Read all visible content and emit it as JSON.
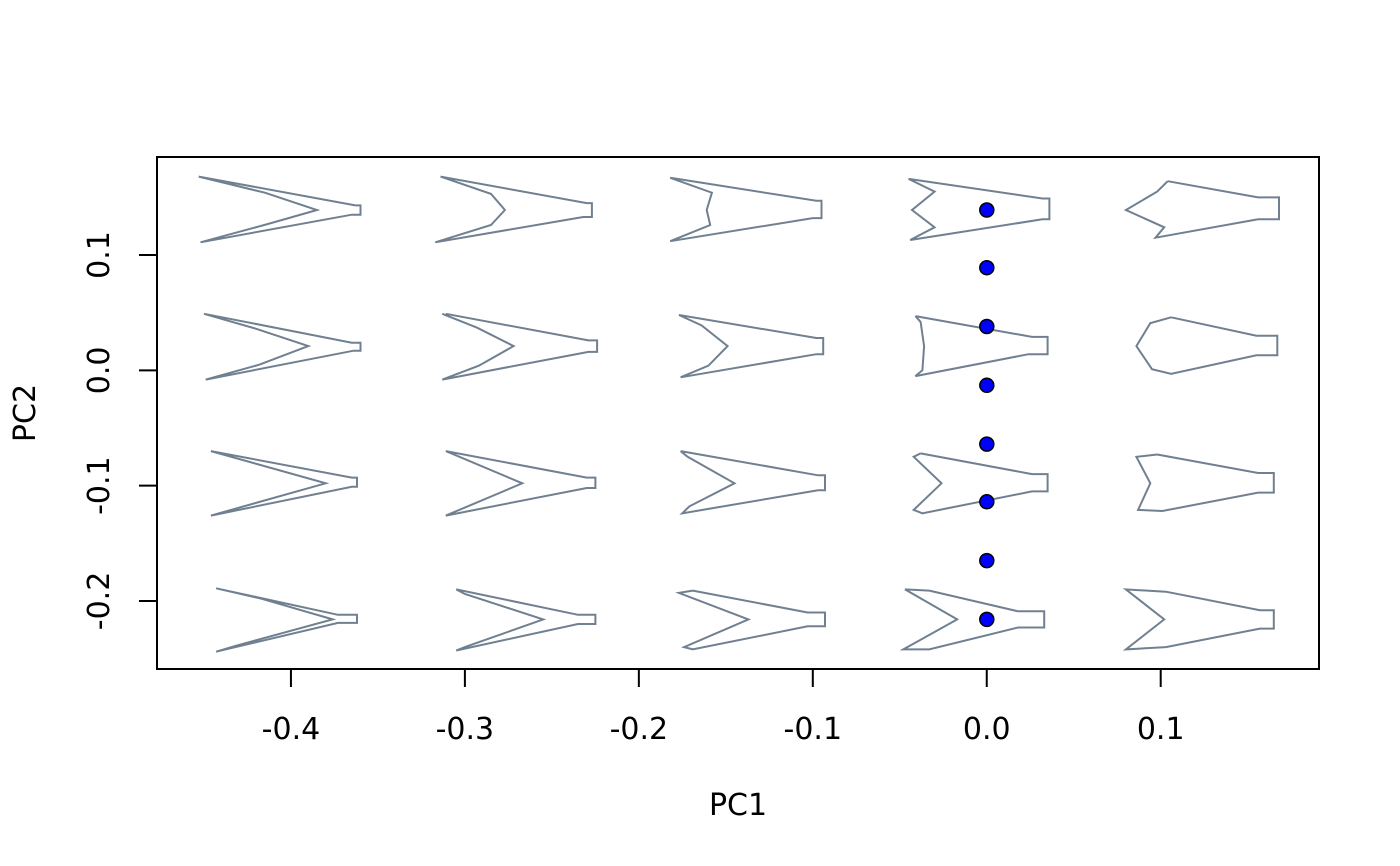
{
  "chart_data": {
    "type": "scatter",
    "title": "",
    "xlabel": "PC1",
    "ylabel": "PC2",
    "xlim": [
      -0.477,
      0.191
    ],
    "ylim": [
      -0.259,
      0.185
    ],
    "x_ticks": [
      {
        "value": -0.4,
        "label": "-0.4"
      },
      {
        "value": -0.3,
        "label": "-0.3"
      },
      {
        "value": -0.2,
        "label": "-0.2"
      },
      {
        "value": -0.1,
        "label": "-0.1"
      },
      {
        "value": 0.0,
        "label": "0.0"
      },
      {
        "value": 0.1,
        "label": "0.1"
      }
    ],
    "y_ticks": [
      {
        "value": -0.2,
        "label": "-0.2"
      },
      {
        "value": -0.1,
        "label": "-0.1"
      },
      {
        "value": 0.0,
        "label": "0.0"
      },
      {
        "value": 0.1,
        "label": "0.1"
      }
    ],
    "grid": false,
    "legend": "none",
    "series": [
      {
        "marker": "filled-circle",
        "color": "#0000ff",
        "points": [
          {
            "x": 0.0,
            "y": 0.139
          },
          {
            "x": 0.0,
            "y": 0.089
          },
          {
            "x": 0.0,
            "y": 0.038
          },
          {
            "x": 0.0,
            "y": -0.013
          },
          {
            "x": 0.0,
            "y": -0.064
          },
          {
            "x": 0.0,
            "y": -0.114
          },
          {
            "x": 0.0,
            "y": -0.165
          },
          {
            "x": 0.0,
            "y": -0.216
          }
        ]
      }
    ],
    "shape_grid": {
      "color": "#708090",
      "columns_x": [
        -0.364,
        -0.231,
        -0.097,
        0.035,
        0.168
      ],
      "rows_y": [
        0.139,
        0.019,
        -0.098,
        -0.216
      ],
      "shapes": [
        [
          [
            [
              -0.453,
              0.168
            ],
            [
              -0.363,
              0.143
            ],
            [
              -0.36,
              0.143
            ],
            [
              -0.36,
              0.135
            ],
            [
              -0.365,
              0.135
            ],
            [
              -0.452,
              0.111
            ],
            [
              -0.413,
              0.127
            ],
            [
              -0.385,
              0.139
            ],
            [
              -0.415,
              0.154
            ],
            [
              -0.453,
              0.168
            ]
          ],
          [
            [
              -0.314,
              0.168
            ],
            [
              -0.23,
              0.145
            ],
            [
              -0.227,
              0.145
            ],
            [
              -0.227,
              0.133
            ],
            [
              -0.232,
              0.133
            ],
            [
              -0.317,
              0.111
            ],
            [
              -0.285,
              0.126
            ],
            [
              -0.277,
              0.139
            ],
            [
              -0.285,
              0.153
            ],
            [
              -0.314,
              0.168
            ]
          ],
          [
            [
              -0.182,
              0.167
            ],
            [
              -0.098,
              0.147
            ],
            [
              -0.095,
              0.147
            ],
            [
              -0.095,
              0.132
            ],
            [
              -0.1,
              0.132
            ],
            [
              -0.182,
              0.112
            ],
            [
              -0.159,
              0.126
            ],
            [
              -0.161,
              0.139
            ],
            [
              -0.158,
              0.154
            ],
            [
              -0.182,
              0.167
            ]
          ],
          [
            [
              -0.045,
              0.166
            ],
            [
              0.032,
              0.149
            ],
            [
              0.036,
              0.149
            ],
            [
              0.036,
              0.131
            ],
            [
              0.032,
              0.131
            ],
            [
              -0.044,
              0.113
            ],
            [
              -0.03,
              0.124
            ],
            [
              -0.043,
              0.139
            ],
            [
              -0.03,
              0.155
            ],
            [
              -0.045,
              0.166
            ]
          ],
          [
            [
              0.104,
              0.164
            ],
            [
              0.156,
              0.15
            ],
            [
              0.168,
              0.15
            ],
            [
              0.168,
              0.131
            ],
            [
              0.156,
              0.131
            ],
            [
              0.097,
              0.115
            ],
            [
              0.102,
              0.124
            ],
            [
              0.08,
              0.139
            ],
            [
              0.098,
              0.155
            ],
            [
              0.104,
              0.164
            ]
          ]
        ],
        [
          [
            [
              -0.45,
              0.049
            ],
            [
              -0.365,
              0.024
            ],
            [
              -0.36,
              0.024
            ],
            [
              -0.36,
              0.017
            ],
            [
              -0.364,
              0.017
            ],
            [
              -0.449,
              -0.008
            ],
            [
              -0.418,
              0.005
            ],
            [
              -0.39,
              0.021
            ],
            [
              -0.42,
              0.036
            ],
            [
              -0.45,
              0.049
            ]
          ],
          [
            [
              -0.311,
              0.049
            ],
            [
              -0.229,
              0.026
            ],
            [
              -0.224,
              0.026
            ],
            [
              -0.224,
              0.016
            ],
            [
              -0.229,
              0.016
            ],
            [
              -0.313,
              -0.008
            ],
            [
              -0.292,
              0.004
            ],
            [
              -0.272,
              0.021
            ],
            [
              -0.293,
              0.037
            ],
            [
              -0.313,
              0.049
            ]
          ],
          [
            [
              -0.177,
              0.048
            ],
            [
              -0.098,
              0.028
            ],
            [
              -0.094,
              0.028
            ],
            [
              -0.094,
              0.014
            ],
            [
              -0.098,
              0.014
            ],
            [
              -0.176,
              -0.006
            ],
            [
              -0.16,
              0.004
            ],
            [
              -0.149,
              0.021
            ],
            [
              -0.164,
              0.039
            ],
            [
              -0.177,
              0.048
            ]
          ],
          [
            [
              -0.041,
              0.047
            ],
            [
              0.026,
              0.029
            ],
            [
              0.035,
              0.029
            ],
            [
              0.035,
              0.014
            ],
            [
              0.024,
              0.014
            ],
            [
              -0.041,
              -0.005
            ],
            [
              -0.037,
              0.0
            ],
            [
              -0.036,
              0.021
            ],
            [
              -0.038,
              0.042
            ],
            [
              -0.041,
              0.047
            ]
          ],
          [
            [
              0.106,
              0.046
            ],
            [
              0.155,
              0.03
            ],
            [
              0.167,
              0.03
            ],
            [
              0.167,
              0.013
            ],
            [
              0.155,
              0.013
            ],
            [
              0.106,
              -0.003
            ],
            [
              0.095,
              0.001
            ],
            [
              0.086,
              0.021
            ],
            [
              0.094,
              0.041
            ],
            [
              0.106,
              0.046
            ]
          ]
        ],
        [
          [
            [
              -0.446,
              -0.07
            ],
            [
              -0.365,
              -0.093
            ],
            [
              -0.362,
              -0.093
            ],
            [
              -0.362,
              -0.101
            ],
            [
              -0.365,
              -0.101
            ],
            [
              -0.446,
              -0.126
            ],
            [
              -0.38,
              -0.098
            ],
            [
              -0.446,
              -0.07
            ]
          ],
          [
            [
              -0.311,
              -0.07
            ],
            [
              -0.23,
              -0.093
            ],
            [
              -0.225,
              -0.093
            ],
            [
              -0.225,
              -0.102
            ],
            [
              -0.23,
              -0.102
            ],
            [
              -0.311,
              -0.126
            ],
            [
              -0.267,
              -0.098
            ],
            [
              -0.311,
              -0.07
            ]
          ],
          [
            [
              -0.176,
              -0.07
            ],
            [
              -0.097,
              -0.091
            ],
            [
              -0.093,
              -0.091
            ],
            [
              -0.093,
              -0.104
            ],
            [
              -0.097,
              -0.104
            ],
            [
              -0.175,
              -0.124
            ],
            [
              -0.171,
              -0.118
            ],
            [
              -0.145,
              -0.098
            ],
            [
              -0.172,
              -0.075
            ],
            [
              -0.176,
              -0.07
            ]
          ],
          [
            [
              -0.038,
              -0.072
            ],
            [
              0.026,
              -0.09
            ],
            [
              0.035,
              -0.09
            ],
            [
              0.035,
              -0.105
            ],
            [
              0.026,
              -0.105
            ],
            [
              -0.037,
              -0.124
            ],
            [
              -0.042,
              -0.121
            ],
            [
              -0.026,
              -0.098
            ],
            [
              -0.042,
              -0.075
            ],
            [
              -0.038,
              -0.072
            ]
          ],
          [
            [
              0.098,
              -0.073
            ],
            [
              0.156,
              -0.089
            ],
            [
              0.165,
              -0.089
            ],
            [
              0.165,
              -0.106
            ],
            [
              0.156,
              -0.106
            ],
            [
              0.101,
              -0.122
            ],
            [
              0.087,
              -0.121
            ],
            [
              0.094,
              -0.098
            ],
            [
              0.086,
              -0.075
            ],
            [
              0.098,
              -0.073
            ]
          ]
        ],
        [
          [
            [
              -0.443,
              -0.189
            ],
            [
              -0.373,
              -0.212
            ],
            [
              -0.362,
              -0.212
            ],
            [
              -0.362,
              -0.219
            ],
            [
              -0.373,
              -0.219
            ],
            [
              -0.443,
              -0.244
            ],
            [
              -0.432,
              -0.239
            ],
            [
              -0.376,
              -0.216
            ],
            [
              -0.417,
              -0.198
            ],
            [
              -0.443,
              -0.189
            ]
          ],
          [
            [
              -0.305,
              -0.19
            ],
            [
              -0.235,
              -0.212
            ],
            [
              -0.225,
              -0.212
            ],
            [
              -0.225,
              -0.22
            ],
            [
              -0.235,
              -0.22
            ],
            [
              -0.305,
              -0.243
            ],
            [
              -0.3,
              -0.24
            ],
            [
              -0.255,
              -0.216
            ],
            [
              -0.3,
              -0.194
            ],
            [
              -0.305,
              -0.19
            ]
          ],
          [
            [
              -0.169,
              -0.191
            ],
            [
              -0.103,
              -0.21
            ],
            [
              -0.093,
              -0.21
            ],
            [
              -0.093,
              -0.222
            ],
            [
              -0.103,
              -0.222
            ],
            [
              -0.169,
              -0.242
            ],
            [
              -0.174,
              -0.24
            ],
            [
              -0.137,
              -0.216
            ],
            [
              -0.177,
              -0.193
            ],
            [
              -0.169,
              -0.191
            ]
          ],
          [
            [
              -0.033,
              -0.191
            ],
            [
              0.018,
              -0.209
            ],
            [
              0.033,
              -0.209
            ],
            [
              0.033,
              -0.223
            ],
            [
              0.018,
              -0.223
            ],
            [
              -0.033,
              -0.242
            ],
            [
              -0.048,
              -0.242
            ],
            [
              -0.017,
              -0.216
            ],
            [
              -0.047,
              -0.19
            ],
            [
              -0.033,
              -0.191
            ]
          ],
          [
            [
              0.103,
              -0.192
            ],
            [
              0.157,
              -0.208
            ],
            [
              0.165,
              -0.208
            ],
            [
              0.165,
              -0.224
            ],
            [
              0.157,
              -0.224
            ],
            [
              0.103,
              -0.24
            ],
            [
              0.08,
              -0.242
            ],
            [
              0.102,
              -0.216
            ],
            [
              0.08,
              -0.19
            ],
            [
              0.103,
              -0.192
            ]
          ]
        ]
      ]
    }
  }
}
